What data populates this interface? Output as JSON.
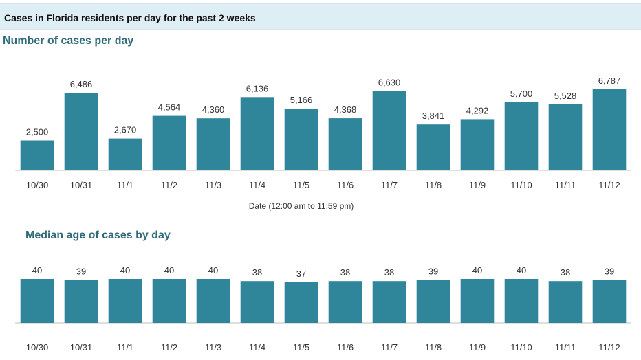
{
  "header": {
    "title": "Cases in Florida residents per day for the past 2 weeks"
  },
  "colors": {
    "bar": "#2f8599",
    "title_band": "#ddeef5",
    "chart_title": "#2f6a7a"
  },
  "chart_data": [
    {
      "type": "bar",
      "title": "Number of cases per day",
      "xlabel": "Date (12:00 am to 11:59 pm)",
      "ylabel": "",
      "categories": [
        "10/30",
        "10/31",
        "11/1",
        "11/2",
        "11/3",
        "11/4",
        "11/5",
        "11/6",
        "11/7",
        "11/8",
        "11/9",
        "11/10",
        "11/11",
        "11/12"
      ],
      "values": [
        2500,
        6486,
        2670,
        4564,
        4360,
        6136,
        5166,
        4368,
        6630,
        3841,
        4292,
        5700,
        5528,
        6787
      ],
      "value_labels": [
        "2,500",
        "6,486",
        "2,670",
        "4,564",
        "4,360",
        "6,136",
        "5,166",
        "4,368",
        "6,630",
        "3,841",
        "4,292",
        "5,700",
        "5,528",
        "6,787"
      ],
      "ylim": [
        0,
        6787
      ],
      "grid": false
    },
    {
      "type": "bar",
      "title": "Median age of cases by day",
      "xlabel": "",
      "ylabel": "",
      "categories": [
        "10/30",
        "10/31",
        "11/1",
        "11/2",
        "11/3",
        "11/4",
        "11/5",
        "11/6",
        "11/7",
        "11/8",
        "11/9",
        "11/10",
        "11/11",
        "11/12"
      ],
      "values": [
        40,
        39,
        40,
        40,
        40,
        38,
        37,
        38,
        38,
        39,
        40,
        40,
        38,
        39
      ],
      "value_labels": [
        "40",
        "39",
        "40",
        "40",
        "40",
        "38",
        "37",
        "38",
        "38",
        "39",
        "40",
        "40",
        "38",
        "39"
      ],
      "ylim": [
        0,
        40
      ],
      "grid": false
    }
  ]
}
